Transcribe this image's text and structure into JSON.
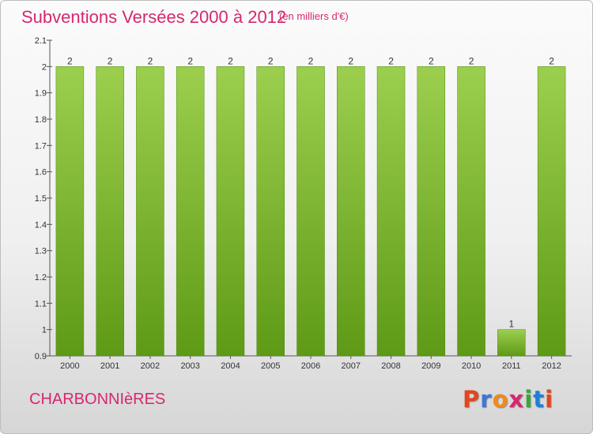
{
  "header": {
    "title": "Subventions Versées 2000 à 2012",
    "subtitle": "(en milliers d'€)"
  },
  "footer": {
    "commune": "CHARBONNIèRES",
    "logo_text": "Proxiti",
    "logo_colors": [
      "#e2461f",
      "#3a78d6",
      "#f08a1c",
      "#d6286f",
      "#3aa63a",
      "#1f7fd6",
      "#e2461f"
    ]
  },
  "colors": {
    "bar_top": "#9ccf4e",
    "bar_bottom": "#5e9a16",
    "bar_edge": "#4d8a10",
    "text": "#333333",
    "accent": "#d6286f"
  },
  "chart_data": {
    "type": "bar",
    "title": "Subventions Versées 2000 à 2012",
    "subtitle": "(en milliers d'€)",
    "categories": [
      "2000",
      "2001",
      "2002",
      "2003",
      "2004",
      "2005",
      "2006",
      "2007",
      "2008",
      "2009",
      "2010",
      "2011",
      "2012"
    ],
    "values": [
      2,
      2,
      2,
      2,
      2,
      2,
      2,
      2,
      2,
      2,
      2,
      1,
      2
    ],
    "data_labels": [
      "2",
      "2",
      "2",
      "2",
      "2",
      "2",
      "2",
      "2",
      "2",
      "2",
      "2",
      "1",
      "2"
    ],
    "ylim": [
      0.9,
      2.1
    ],
    "yticks": [
      "0.9",
      "1",
      "1.1",
      "1.2",
      "1.3",
      "1.4",
      "1.5",
      "1.6",
      "1.7",
      "1.8",
      "1.9",
      "2",
      "2.1"
    ],
    "xlabel": "",
    "ylabel": "",
    "grid": false,
    "legend": "none"
  }
}
